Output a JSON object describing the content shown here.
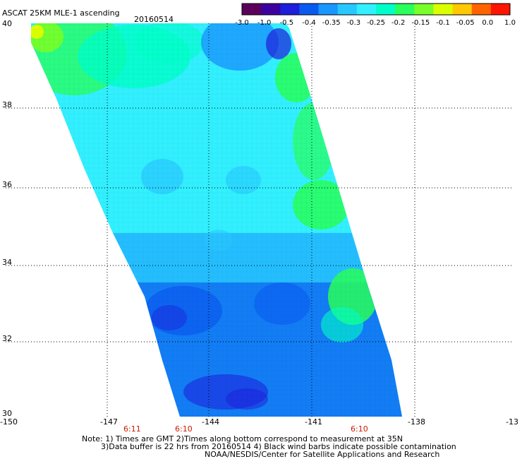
{
  "header": {
    "title": "ASCAT 25KM MLE-1 ascending",
    "date": "20160514"
  },
  "colorbar": {
    "labels": [
      "-3.0",
      "-1.0",
      "-0.5",
      "-0.4",
      "-0.35",
      "-0.3",
      "-0.25",
      "-0.2",
      "-0.15",
      "-0.1",
      "-0.05",
      "0.0",
      "1.0"
    ],
    "colors": [
      "#5a005a",
      "#3c00a0",
      "#1e1edc",
      "#0a5af0",
      "#1a96ff",
      "#27c8ff",
      "#32f0ff",
      "#00ffc8",
      "#28ff5a",
      "#78ff28",
      "#dcff00",
      "#ffc800",
      "#ff6400",
      "#ff1400"
    ]
  },
  "map": {
    "lat_labels": [
      "40",
      "38",
      "36",
      "34",
      "32",
      "30"
    ],
    "lon_labels": [
      "-150",
      "-147",
      "-144",
      "-141",
      "-138",
      "-13"
    ],
    "time_labels": [
      "6:11",
      "6:10",
      "6:10"
    ]
  },
  "notes": {
    "line1": "Note: 1) Times are GMT 2)Times along bottom correspond to measurement at 35N",
    "line2": "3)Data buffer is 22 hrs from 20160514 4) Black wind barbs indicate possible contamination",
    "line3": "NOAA/NESDIS/Center for Satellite Applications and Research"
  }
}
